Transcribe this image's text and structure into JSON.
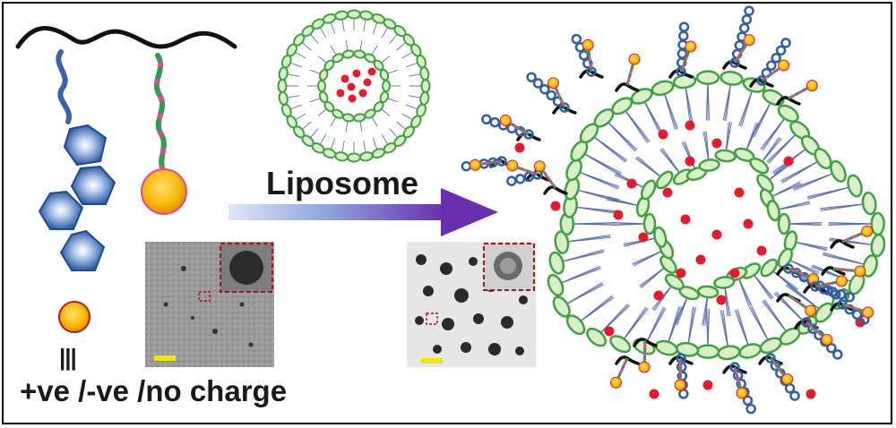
{
  "labels": {
    "liposome": "Liposome",
    "charge": "+ve /-ve /no charge",
    "equiv": "|||"
  },
  "colors": {
    "lipid_head": "#3fa13f",
    "lipid_head_fill": "#d8efc8",
    "lipid_tail": "#5b6fb5",
    "cargo": "#e8192c",
    "polymer": "#111111",
    "hexagon": "#2e5fa8",
    "nanoparticle": "#f7b500",
    "linker_pink": "#e0489a",
    "linker_green": "#2fa04a",
    "arrow": "#6a2fb0",
    "inset_border": "#b01010",
    "scale_bar": "#f2e600"
  },
  "icons": [
    "polymer-chain-icon",
    "pyrene-hexagon-icon",
    "gold-nanoparticle-icon",
    "liposome-icon",
    "process-arrow-icon",
    "hybrid-liposome-icon"
  ]
}
